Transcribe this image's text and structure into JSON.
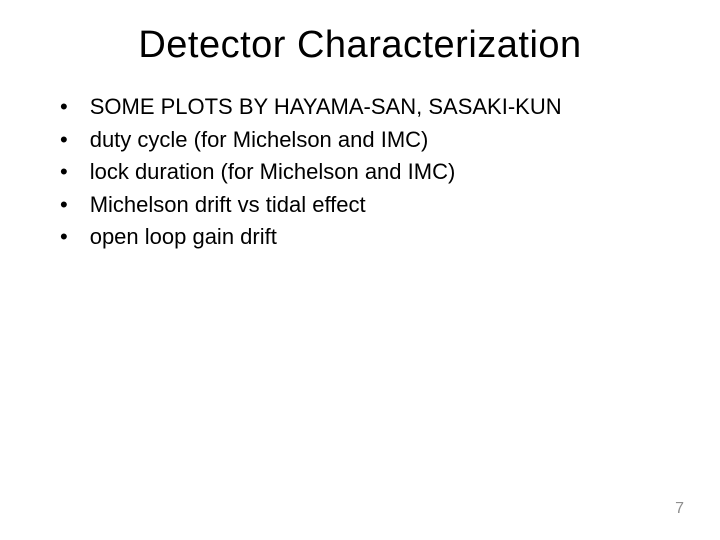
{
  "slide": {
    "title": "Detector Characterization",
    "bullets": [
      "SOME PLOTS BY HAYAMA-SAN, SASAKI-KUN",
      "duty cycle (for Michelson and IMC)",
      "lock duration (for Michelson and IMC)",
      "Michelson drift vs tidal effect",
      "open loop gain drift"
    ],
    "page_number": "7",
    "colors": {
      "background": "#ffffff",
      "text": "#000000",
      "page_number": "#8e8e8e"
    },
    "typography": {
      "title_fontsize": 38,
      "bullet_fontsize": 22,
      "page_number_fontsize": 16,
      "font_family": "Arial, Helvetica, sans-serif"
    }
  }
}
